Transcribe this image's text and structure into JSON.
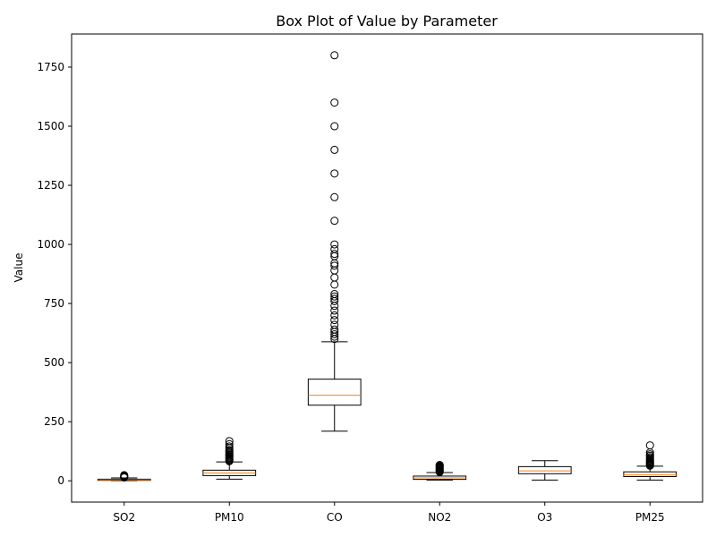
{
  "chart_data": {
    "type": "box",
    "title": "Box Plot of Value by Parameter",
    "xlabel": "",
    "ylabel": "Value",
    "ylim": [
      -90,
      1890
    ],
    "yticks": [
      0,
      250,
      500,
      750,
      1000,
      1250,
      1500,
      1750
    ],
    "categories": [
      "SO2",
      "PM10",
      "CO",
      "NO2",
      "O3",
      "PM25"
    ],
    "colors": {
      "box": "#000000",
      "median": "#ff7f0e",
      "whisker": "#000000",
      "flier": "#000000"
    },
    "grid": false,
    "boxes": [
      {
        "name": "SO2",
        "whisker_low": 1,
        "q1": 2,
        "median": 4,
        "q3": 7,
        "whisker_high": 12,
        "fliers": [
          14,
          16,
          18,
          20,
          22,
          24
        ]
      },
      {
        "name": "PM10",
        "whisker_low": 7,
        "q1": 22,
        "median": 33,
        "q3": 45,
        "whisker_high": 80,
        "fliers": [
          83,
          86,
          90,
          94,
          98,
          102,
          106,
          110,
          115,
          120,
          125,
          130,
          138,
          145,
          155,
          168
        ]
      },
      {
        "name": "CO",
        "whisker_low": 210,
        "q1": 320,
        "median": 362,
        "q3": 430,
        "whisker_high": 588,
        "fliers": [
          600,
          610,
          620,
          630,
          640,
          660,
          680,
          700,
          720,
          740,
          760,
          770,
          780,
          790,
          830,
          860,
          890,
          910,
          920,
          950,
          960,
          980,
          1000,
          1100,
          1200,
          1300,
          1400,
          1500,
          1600,
          1800
        ]
      },
      {
        "name": "NO2",
        "whisker_low": 3,
        "q1": 6,
        "median": 12,
        "q3": 20,
        "whisker_high": 35,
        "fliers": [
          37,
          40,
          43,
          46,
          49,
          52,
          55,
          58,
          61,
          64,
          67
        ]
      },
      {
        "name": "O3",
        "whisker_low": 3,
        "q1": 30,
        "median": 42,
        "q3": 60,
        "whisker_high": 85,
        "fliers": []
      },
      {
        "name": "PM25",
        "whisker_low": 3,
        "q1": 18,
        "median": 25,
        "q3": 38,
        "whisker_high": 62,
        "fliers": [
          64,
          67,
          70,
          73,
          76,
          79,
          82,
          86,
          90,
          95,
          100,
          106,
          112,
          120,
          150
        ]
      }
    ]
  }
}
